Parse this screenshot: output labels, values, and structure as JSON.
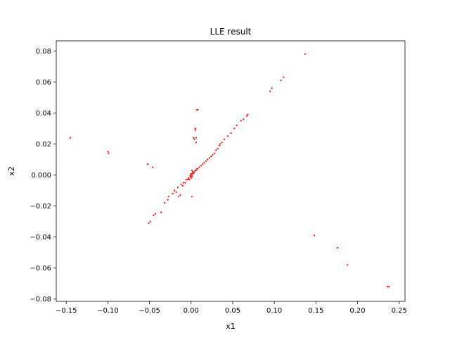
{
  "chart_data": {
    "type": "scatter",
    "title": "LLE result",
    "xlabel": "x1",
    "ylabel": "x2",
    "xlim": [
      -0.162,
      0.257
    ],
    "ylim": [
      -0.0815,
      0.0865
    ],
    "grid": false,
    "marker_color": "#ff0000",
    "x_ticks": [
      -0.15,
      -0.1,
      -0.05,
      0.0,
      0.05,
      0.1,
      0.15,
      0.2,
      0.25
    ],
    "x_tick_labels": [
      "−0.15",
      "−0.10",
      "−0.05",
      "0.00",
      "0.05",
      "0.10",
      "0.15",
      "0.20",
      "0.25"
    ],
    "y_ticks": [
      -0.08,
      -0.06,
      -0.04,
      -0.02,
      0.0,
      0.02,
      0.04,
      0.06,
      0.08
    ],
    "y_tick_labels": [
      "−0.08",
      "−0.06",
      "−0.04",
      "−0.02",
      "0.000",
      "0.02",
      "0.04",
      "0.06",
      "0.08"
    ],
    "series": [
      {
        "values": [
          [
            -0.145,
            0.024
          ],
          [
            -0.1,
            0.015
          ],
          [
            -0.099,
            0.014
          ],
          [
            -0.052,
            0.007
          ],
          [
            -0.046,
            0.005
          ],
          [
            -0.051,
            -0.031
          ],
          [
            -0.049,
            -0.03
          ],
          [
            -0.045,
            -0.026
          ],
          [
            -0.043,
            -0.025
          ],
          [
            -0.036,
            -0.024
          ],
          [
            -0.032,
            -0.018
          ],
          [
            -0.028,
            -0.016
          ],
          [
            -0.027,
            -0.014
          ],
          [
            -0.022,
            -0.012
          ],
          [
            -0.018,
            -0.011
          ],
          [
            -0.015,
            -0.014
          ],
          [
            -0.013,
            -0.013
          ],
          [
            -0.02,
            -0.01
          ],
          [
            -0.016,
            -0.008
          ],
          [
            -0.012,
            -0.006
          ],
          [
            -0.009,
            -0.005
          ],
          [
            -0.006,
            -0.003
          ],
          [
            -0.003,
            -0.002
          ],
          [
            0.0,
            0.0
          ],
          [
            0.002,
            0.001
          ],
          [
            0.004,
            0.002
          ],
          [
            0.006,
            0.003
          ],
          [
            0.008,
            0.004
          ],
          [
            0.01,
            0.005
          ],
          [
            0.012,
            0.006
          ],
          [
            0.014,
            0.007
          ],
          [
            0.016,
            0.008
          ],
          [
            0.018,
            0.009
          ],
          [
            0.02,
            0.01
          ],
          [
            0.022,
            0.011
          ],
          [
            0.024,
            0.012
          ],
          [
            0.026,
            0.013
          ],
          [
            0.028,
            0.014
          ],
          [
            0.03,
            0.016
          ],
          [
            0.032,
            0.017
          ],
          [
            0.034,
            0.019
          ],
          [
            0.035,
            0.02
          ],
          [
            0.037,
            0.021
          ],
          [
            0.04,
            0.023
          ],
          [
            0.044,
            0.025
          ],
          [
            0.048,
            0.027
          ],
          [
            0.052,
            0.03
          ],
          [
            0.055,
            0.032
          ],
          [
            0.06,
            0.035
          ],
          [
            0.063,
            0.036
          ],
          [
            0.067,
            0.038
          ],
          [
            0.068,
            0.039
          ],
          [
            -0.01,
            -0.007
          ],
          [
            -0.007,
            -0.005
          ],
          [
            -0.004,
            -0.003
          ],
          [
            -0.001,
            -0.001
          ],
          [
            0.001,
            0.0
          ],
          [
            0.003,
            0.001
          ],
          [
            0.005,
            0.003
          ],
          [
            0.007,
            0.004
          ],
          [
            0.0,
            -0.002
          ],
          [
            -0.002,
            -0.003
          ],
          [
            0.001,
            -0.001
          ],
          [
            0.002,
            0.002
          ],
          [
            0.0,
            0.001
          ],
          [
            -0.001,
            0.0
          ],
          [
            0.001,
            0.003
          ],
          [
            0.001,
            -0.014
          ],
          [
            0.003,
            0.024
          ],
          [
            0.005,
            0.03
          ],
          [
            0.005,
            0.029
          ],
          [
            0.006,
            0.021
          ],
          [
            0.006,
            0.024
          ],
          [
            0.004,
            0.023
          ],
          [
            0.007,
            0.042
          ],
          [
            0.008,
            0.042
          ],
          [
            0.095,
            0.054
          ],
          [
            0.097,
            0.056
          ],
          [
            0.108,
            0.061
          ],
          [
            0.111,
            0.063
          ],
          [
            0.137,
            0.078
          ],
          [
            0.148,
            -0.039
          ],
          [
            0.176,
            -0.047
          ],
          [
            0.188,
            -0.058
          ],
          [
            0.236,
            -0.072
          ],
          [
            0.238,
            -0.072
          ]
        ]
      }
    ]
  }
}
